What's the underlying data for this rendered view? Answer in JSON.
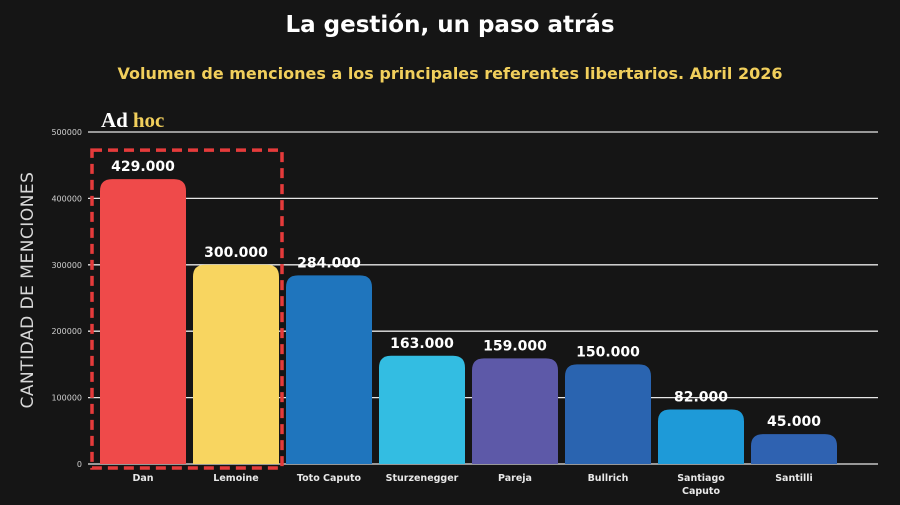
{
  "header": {
    "title": "La gestión, un paso atrás",
    "subtitle": "Volumen de menciones a los principales referentes libertarios. Abril 2026"
  },
  "logo": {
    "part1": "Ad",
    "part2": "hoc"
  },
  "chart_data": {
    "type": "bar",
    "title": "La gestión, un paso atrás",
    "subtitle": "Volumen de menciones a los principales referentes libertarios. Abril 2026",
    "xlabel": "",
    "ylabel": "CANTIDAD DE MENCIONES",
    "ylim": [
      0,
      500000
    ],
    "yticks": [
      0,
      100000,
      200000,
      300000,
      400000,
      500000
    ],
    "ytick_labels": [
      "0",
      "100000",
      "200000",
      "300000",
      "400000",
      "500000"
    ],
    "grid": true,
    "categories": [
      [
        "Dan"
      ],
      [
        "Lemoine"
      ],
      [
        "Toto Caputo"
      ],
      [
        "Sturzenegger"
      ],
      [
        "Pareja"
      ],
      [
        "Bullrich"
      ],
      [
        "Santiago",
        "Caputo"
      ],
      [
        "Santilli"
      ]
    ],
    "values": [
      429000,
      300000,
      284000,
      163000,
      159000,
      150000,
      82000,
      45000
    ],
    "value_labels": [
      "429.000",
      "300.000",
      "284.000",
      "163.000",
      "159.000",
      "150.000",
      "82.000",
      "45.000"
    ],
    "colors": [
      "#ef4a4a",
      "#f8d560",
      "#1f75bd",
      "#33bde2",
      "#5d59a8",
      "#2a64b0",
      "#1e9ad8",
      "#2f62b1"
    ],
    "highlight": {
      "categories": [
        "Dan",
        "Lemoine"
      ],
      "style": "dashed-box",
      "color": "#e53b3b"
    }
  }
}
